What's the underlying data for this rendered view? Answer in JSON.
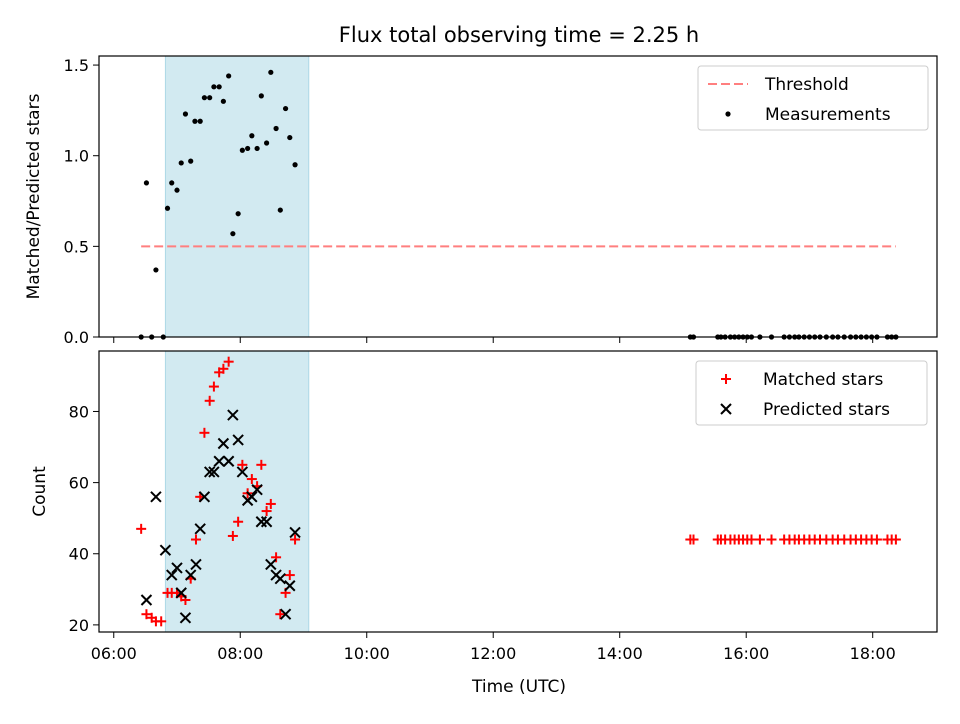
{
  "chart_data": {
    "title": "Flux total observing time = 2.25 h",
    "xlabel": "Time (UTC)",
    "x_unit": "hours (UTC)",
    "xlim": [
      "05:46",
      "19:01"
    ],
    "xticks": [
      "06:00",
      "08:00",
      "10:00",
      "12:00",
      "14:00",
      "16:00",
      "18:00"
    ],
    "shaded_interval": [
      "06:49",
      "09:05"
    ],
    "shade_color": "#add8e6",
    "panels": [
      {
        "type": "scatter",
        "ylabel": "Matched/Predicted stars",
        "ylim": [
          0,
          1.55
        ],
        "yticks": [
          "0.0",
          "0.5",
          "1.0",
          "1.5"
        ],
        "threshold": {
          "name": "Threshold",
          "y": 0.5,
          "x_start": "06:26",
          "x_end": "18:22",
          "color": "#ff7f7f",
          "style": "dashed"
        },
        "series": [
          {
            "name": "Measurements",
            "color": "#000000",
            "marker": "dot",
            "points": [
              [
                "06:26",
                0
              ],
              [
                "06:36",
                0
              ],
              [
                "06:47",
                0
              ],
              [
                "06:31",
                0.85
              ],
              [
                "06:40",
                0.37
              ],
              [
                "06:51",
                0.71
              ],
              [
                "06:55",
                0.85
              ],
              [
                "07:00",
                0.81
              ],
              [
                "07:04",
                0.96
              ],
              [
                "07:08",
                1.23
              ],
              [
                "07:13",
                0.97
              ],
              [
                "07:17",
                1.19
              ],
              [
                "07:22",
                1.19
              ],
              [
                "07:26",
                1.32
              ],
              [
                "07:31",
                1.32
              ],
              [
                "07:35",
                1.38
              ],
              [
                "07:40",
                1.38
              ],
              [
                "07:44",
                1.3
              ],
              [
                "07:49",
                1.44
              ],
              [
                "07:53",
                0.57
              ],
              [
                "07:58",
                0.68
              ],
              [
                "08:02",
                1.03
              ],
              [
                "08:07",
                1.04
              ],
              [
                "08:11",
                1.11
              ],
              [
                "08:16",
                1.04
              ],
              [
                "08:20",
                1.33
              ],
              [
                "08:25",
                1.07
              ],
              [
                "08:29",
                1.46
              ],
              [
                "08:34",
                1.15
              ],
              [
                "08:38",
                0.7
              ],
              [
                "08:43",
                1.26
              ],
              [
                "08:47",
                1.1
              ],
              [
                "08:52",
                0.95
              ],
              [
                "15:07",
                0
              ],
              [
                "15:10",
                0
              ],
              [
                "15:33",
                0
              ],
              [
                "15:36",
                0
              ],
              [
                "15:40",
                0
              ],
              [
                "15:45",
                0
              ],
              [
                "15:49",
                0
              ],
              [
                "15:53",
                0
              ],
              [
                "15:57",
                0
              ],
              [
                "16:01",
                0
              ],
              [
                "16:05",
                0
              ],
              [
                "16:13",
                0
              ],
              [
                "16:24",
                0
              ],
              [
                "16:36",
                0
              ],
              [
                "16:41",
                0
              ],
              [
                "16:46",
                0
              ],
              [
                "16:50",
                0
              ],
              [
                "16:55",
                0
              ],
              [
                "17:00",
                0
              ],
              [
                "17:05",
                0
              ],
              [
                "17:10",
                0
              ],
              [
                "17:16",
                0
              ],
              [
                "17:22",
                0
              ],
              [
                "17:27",
                0
              ],
              [
                "17:33",
                0
              ],
              [
                "17:39",
                0
              ],
              [
                "17:44",
                0
              ],
              [
                "17:49",
                0
              ],
              [
                "17:54",
                0
              ],
              [
                "17:59",
                0
              ],
              [
                "18:04",
                0
              ],
              [
                "18:14",
                0
              ],
              [
                "18:18",
                0
              ],
              [
                "18:22",
                0
              ]
            ]
          }
        ]
      },
      {
        "type": "scatter",
        "ylabel": "Count",
        "ylim": [
          18,
          97
        ],
        "yticks": [
          "20",
          "40",
          "60",
          "80"
        ],
        "series": [
          {
            "name": "Matched stars",
            "color": "#ff0000",
            "marker": "plus",
            "points": [
              [
                "06:26",
                47
              ],
              [
                "06:31",
                23
              ],
              [
                "06:36",
                22
              ],
              [
                "06:40",
                21
              ],
              [
                "06:45",
                21
              ],
              [
                "06:51",
                29
              ],
              [
                "06:55",
                29
              ],
              [
                "07:00",
                29
              ],
              [
                "07:04",
                28
              ],
              [
                "07:08",
                27
              ],
              [
                "07:13",
                33
              ],
              [
                "07:18",
                44
              ],
              [
                "07:22",
                56
              ],
              [
                "07:26",
                74
              ],
              [
                "07:31",
                83
              ],
              [
                "07:35",
                87
              ],
              [
                "07:40",
                91
              ],
              [
                "07:44",
                92
              ],
              [
                "07:49",
                94
              ],
              [
                "07:53",
                45
              ],
              [
                "07:58",
                49
              ],
              [
                "08:02",
                65
              ],
              [
                "08:07",
                57
              ],
              [
                "08:11",
                61
              ],
              [
                "08:16",
                59
              ],
              [
                "08:20",
                65
              ],
              [
                "08:25",
                52
              ],
              [
                "08:29",
                54
              ],
              [
                "08:34",
                39
              ],
              [
                "08:38",
                23
              ],
              [
                "08:43",
                29
              ],
              [
                "08:47",
                34
              ],
              [
                "08:52",
                44
              ],
              [
                "15:07",
                44
              ],
              [
                "15:10",
                44
              ],
              [
                "15:33",
                44
              ],
              [
                "15:36",
                44
              ],
              [
                "15:40",
                44
              ],
              [
                "15:45",
                44
              ],
              [
                "15:49",
                44
              ],
              [
                "15:53",
                44
              ],
              [
                "15:57",
                44
              ],
              [
                "16:01",
                44
              ],
              [
                "16:05",
                44
              ],
              [
                "16:13",
                44
              ],
              [
                "16:24",
                44
              ],
              [
                "16:36",
                44
              ],
              [
                "16:41",
                44
              ],
              [
                "16:46",
                44
              ],
              [
                "16:50",
                44
              ],
              [
                "16:55",
                44
              ],
              [
                "17:00",
                44
              ],
              [
                "17:05",
                44
              ],
              [
                "17:10",
                44
              ],
              [
                "17:16",
                44
              ],
              [
                "17:22",
                44
              ],
              [
                "17:27",
                44
              ],
              [
                "17:33",
                44
              ],
              [
                "17:39",
                44
              ],
              [
                "17:44",
                44
              ],
              [
                "17:49",
                44
              ],
              [
                "17:54",
                44
              ],
              [
                "17:59",
                44
              ],
              [
                "18:04",
                44
              ],
              [
                "18:14",
                44
              ],
              [
                "18:18",
                44
              ],
              [
                "18:22",
                44
              ]
            ]
          },
          {
            "name": "Predicted stars",
            "color": "#000000",
            "marker": "x",
            "points": [
              [
                "06:31",
                27
              ],
              [
                "06:40",
                56
              ],
              [
                "06:49",
                41
              ],
              [
                "06:55",
                34
              ],
              [
                "07:00",
                36
              ],
              [
                "07:04",
                29
              ],
              [
                "07:08",
                22
              ],
              [
                "07:13",
                34
              ],
              [
                "07:18",
                37
              ],
              [
                "07:22",
                47
              ],
              [
                "07:26",
                56
              ],
              [
                "07:31",
                63
              ],
              [
                "07:35",
                63
              ],
              [
                "07:40",
                66
              ],
              [
                "07:44",
                71
              ],
              [
                "07:49",
                66
              ],
              [
                "07:53",
                79
              ],
              [
                "07:58",
                72
              ],
              [
                "08:02",
                63
              ],
              [
                "08:07",
                55
              ],
              [
                "08:11",
                56
              ],
              [
                "08:16",
                58
              ],
              [
                "08:20",
                49
              ],
              [
                "08:25",
                49
              ],
              [
                "08:29",
                37
              ],
              [
                "08:34",
                34
              ],
              [
                "08:38",
                33
              ],
              [
                "08:43",
                23
              ],
              [
                "08:47",
                31
              ],
              [
                "08:52",
                46
              ]
            ]
          }
        ]
      }
    ]
  }
}
